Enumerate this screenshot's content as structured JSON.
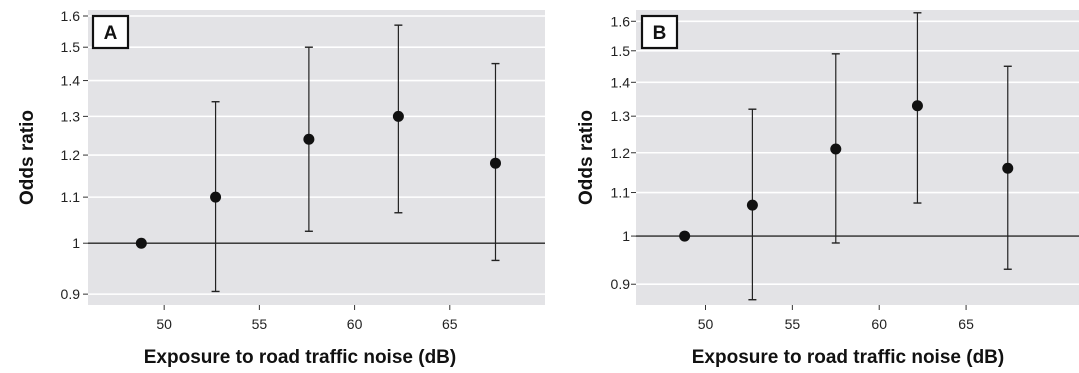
{
  "chart_data": [
    {
      "type": "scatter",
      "panel_label": "A",
      "xlabel": "Exposure to road traffic noise (dB)",
      "ylabel": "Odds ratio",
      "xlim": [
        46,
        70
      ],
      "ylim": [
        0.88,
        1.62
      ],
      "y_scale": "log",
      "xticks": [
        50,
        55,
        60,
        65
      ],
      "yticks": [
        0.9,
        1,
        1.1,
        1.2,
        1.3,
        1.4,
        1.5,
        1.6
      ],
      "ytick_labels": [
        "0.9",
        "1",
        "1.1",
        "1.2",
        "1.3",
        "1.4",
        "1.5",
        "1.6"
      ],
      "reference_line": 1,
      "grid": true,
      "points": [
        {
          "x": 48.8,
          "y": 1.0,
          "lo": null,
          "hi": null
        },
        {
          "x": 52.7,
          "y": 1.1,
          "lo": 0.905,
          "hi": 1.34
        },
        {
          "x": 57.6,
          "y": 1.24,
          "lo": 1.025,
          "hi": 1.5
        },
        {
          "x": 62.3,
          "y": 1.3,
          "lo": 1.065,
          "hi": 1.57
        },
        {
          "x": 67.4,
          "y": 1.18,
          "lo": 0.965,
          "hi": 1.45
        }
      ]
    },
    {
      "type": "scatter",
      "panel_label": "B",
      "xlabel": "Exposure to road traffic noise (dB)",
      "ylabel": "Odds ratio",
      "xlim": [
        46,
        71.5
      ],
      "ylim": [
        0.86,
        1.64
      ],
      "y_scale": "log",
      "xticks": [
        50,
        55,
        60,
        65
      ],
      "yticks": [
        0.9,
        1,
        1.1,
        1.2,
        1.3,
        1.4,
        1.5,
        1.6
      ],
      "ytick_labels": [
        "0.9",
        "1",
        "1.1",
        "1.2",
        "1.3",
        "1.4",
        "1.5",
        "1.6"
      ],
      "reference_line": 1,
      "grid": true,
      "points": [
        {
          "x": 48.8,
          "y": 1.0,
          "lo": null,
          "hi": null
        },
        {
          "x": 52.7,
          "y": 1.07,
          "lo": 0.87,
          "hi": 1.32
        },
        {
          "x": 57.5,
          "y": 1.21,
          "lo": 0.985,
          "hi": 1.49
        },
        {
          "x": 62.2,
          "y": 1.33,
          "lo": 1.075,
          "hi": 1.63
        },
        {
          "x": 67.4,
          "y": 1.16,
          "lo": 0.93,
          "hi": 1.45
        }
      ]
    }
  ]
}
